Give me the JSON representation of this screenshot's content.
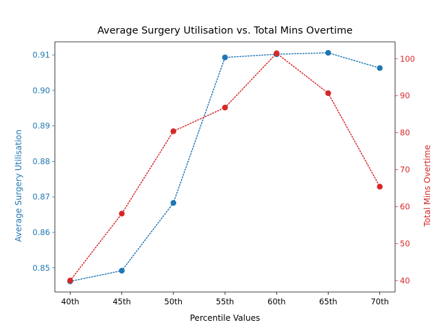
{
  "chart_data": {
    "type": "line",
    "title": "Average Surgery Utilisation vs. Total Mins Overtime",
    "xlabel": "Percentile Values",
    "categories": [
      "40th",
      "45th",
      "50th",
      "55th",
      "60th",
      "65th",
      "70th"
    ],
    "y_left": {
      "label": "Average Surgery Utilisation",
      "lim": [
        0.8432,
        0.9137
      ],
      "ticks": [
        0.85,
        0.86,
        0.87,
        0.88,
        0.89,
        0.9,
        0.91
      ],
      "tick_labels": [
        "0.85",
        "0.86",
        "0.87",
        "0.88",
        "0.89",
        "0.90",
        "0.91"
      ],
      "color": "#1f77b4"
    },
    "y_right": {
      "label": "Total Mins Overtime",
      "lim": [
        36.9,
        104.6
      ],
      "ticks": [
        40,
        50,
        60,
        70,
        80,
        90,
        100
      ],
      "tick_labels": [
        "40",
        "50",
        "60",
        "70",
        "80",
        "90",
        "100"
      ],
      "color": "#d62728"
    },
    "series": [
      {
        "axis": "left",
        "color": "#1f77b4",
        "line_style": "dotted",
        "marker": "circle",
        "values": [
          0.8462,
          0.8492,
          0.8683,
          0.9093,
          0.9102,
          0.9106,
          0.9063
        ]
      },
      {
        "axis": "right",
        "color": "#d62728",
        "line_style": "dotted",
        "marker": "circle",
        "values": [
          40.0,
          58.1,
          80.4,
          86.8,
          101.5,
          90.7,
          65.4
        ]
      }
    ],
    "grid": false,
    "legend": "none"
  }
}
